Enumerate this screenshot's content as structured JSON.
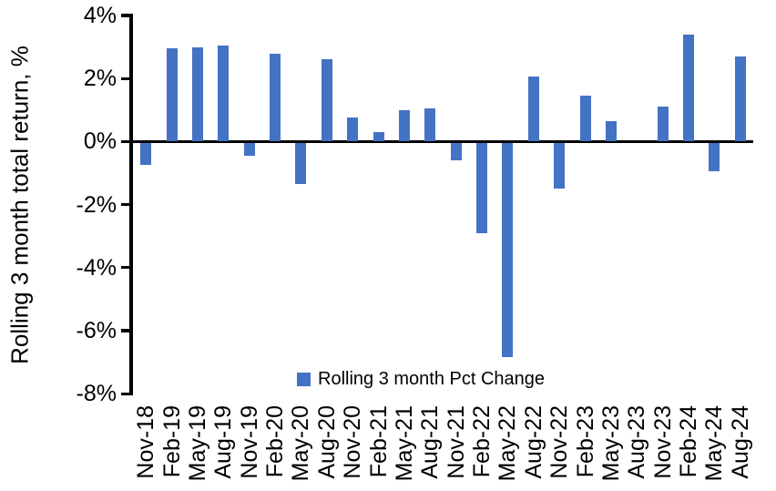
{
  "chart_data": {
    "type": "bar",
    "title": "",
    "ylabel": "Rolling 3 month total return, %",
    "series_name": "Rolling 3 month Pct Change",
    "categories": [
      "Nov-18",
      "Feb-19",
      "May-19",
      "Aug-19",
      "Nov-19",
      "Feb-20",
      "May-20",
      "Aug-20",
      "Nov-20",
      "Feb-21",
      "May-21",
      "Aug-21",
      "Nov-21",
      "Feb-22",
      "May-22",
      "Aug-22",
      "Nov-22",
      "Feb-23",
      "May-23",
      "Aug-23",
      "Nov-23",
      "Feb-24",
      "May-24",
      "Aug-24"
    ],
    "values": [
      -0.7,
      2.95,
      3.0,
      3.05,
      -0.4,
      2.8,
      -1.3,
      2.6,
      0.75,
      0.3,
      1.0,
      1.05,
      -0.55,
      -2.85,
      -6.8,
      2.05,
      -1.45,
      1.45,
      0.65,
      0.0,
      1.1,
      3.4,
      -0.9,
      2.7
    ],
    "ylim": [
      -8,
      4
    ],
    "ytick_step": 2,
    "ytick_labels": [
      "4%",
      "2%",
      "0%",
      "-2%",
      "-4%",
      "-6%",
      "-8%"
    ],
    "grid": false,
    "legend_position": "bottom-center-inside",
    "bar_color": "#4472C4",
    "axis_color": "#000000"
  }
}
